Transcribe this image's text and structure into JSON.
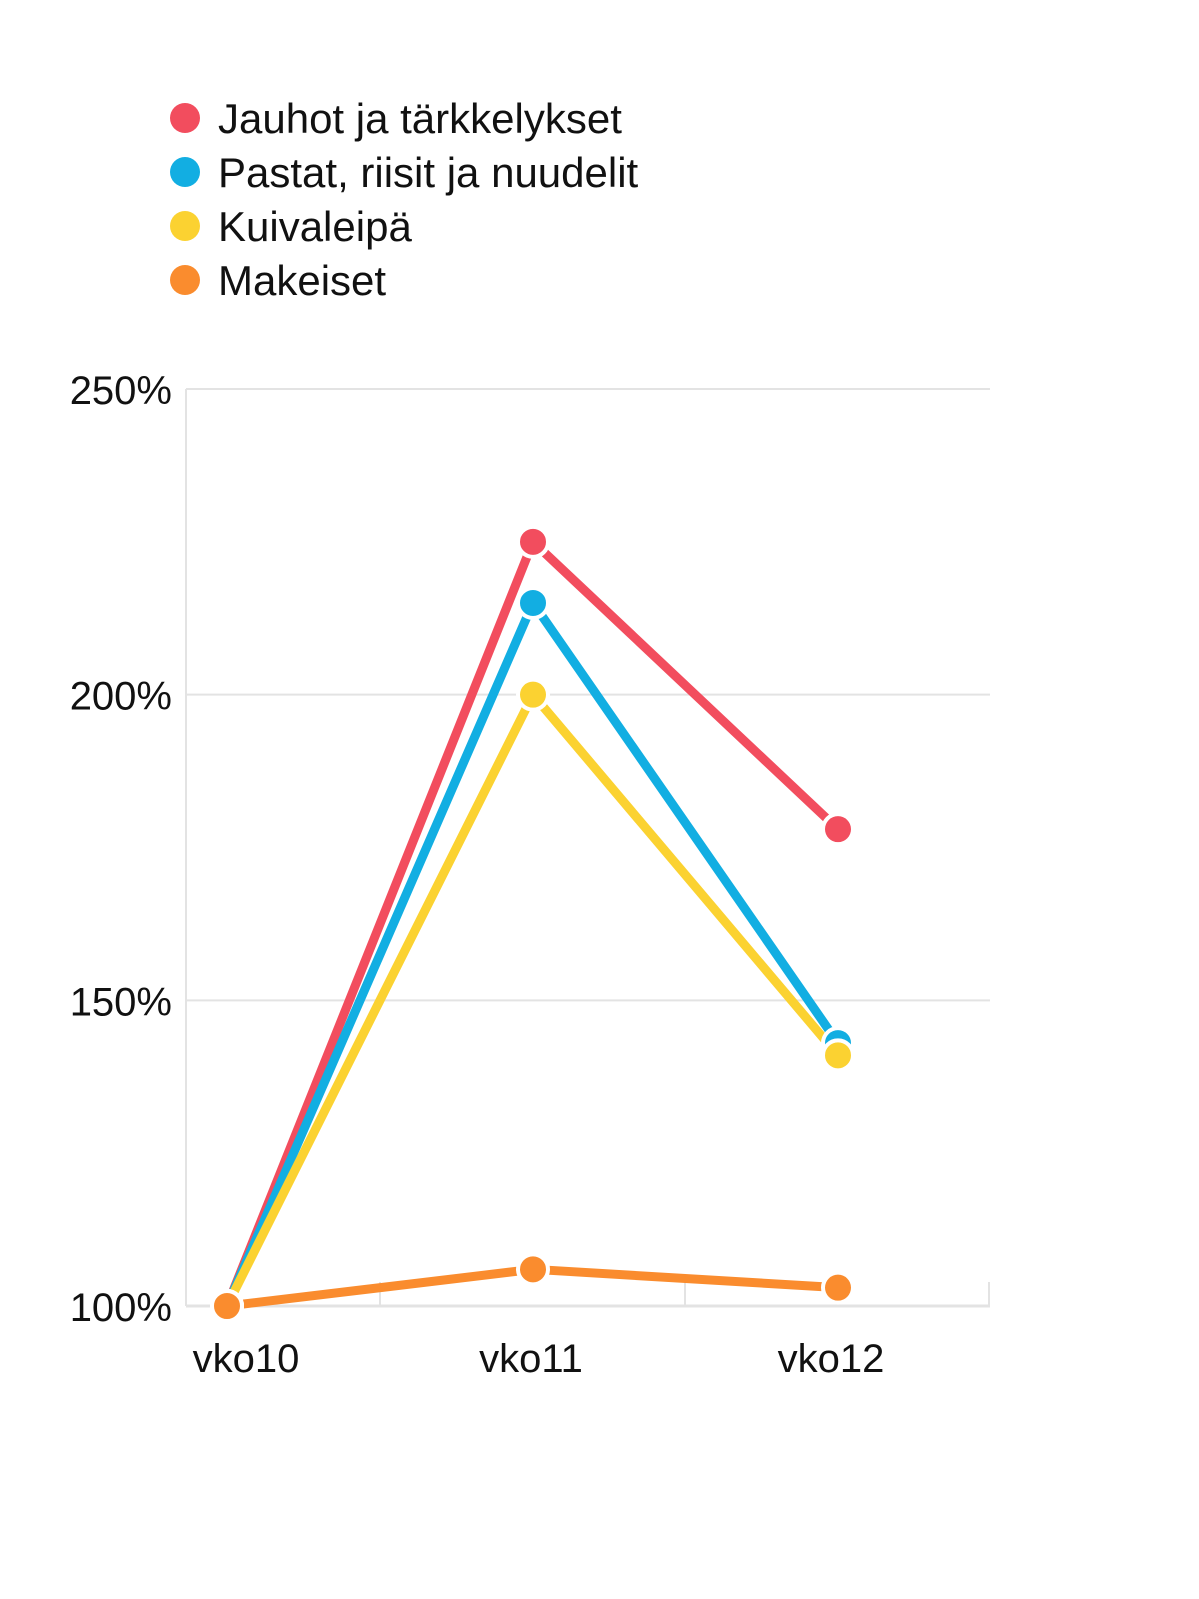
{
  "chart_data": {
    "type": "line",
    "x": [
      "vko10",
      "vko11",
      "vko12"
    ],
    "series": [
      {
        "name": "Jauhot ja tärkkelykset",
        "color": "#f24d5e",
        "values": [
          100,
          225,
          178
        ]
      },
      {
        "name": "Pastat, riisit ja nuudelit",
        "color": "#12aee2",
        "values": [
          100,
          215,
          143
        ]
      },
      {
        "name": "Kuivaleipä",
        "color": "#fbd231",
        "values": [
          100,
          200,
          141
        ]
      },
      {
        "name": "Makeiset",
        "color": "#fa8c2e",
        "values": [
          100,
          106,
          103
        ]
      }
    ],
    "ylim": [
      100,
      250
    ],
    "yticks": [
      100,
      150,
      200,
      250
    ],
    "ytick_labels": [
      "100%",
      "150%",
      "200%",
      "250%"
    ],
    "grid": true,
    "legend": "top-left",
    "gridline_color": "#e3e3e3"
  }
}
